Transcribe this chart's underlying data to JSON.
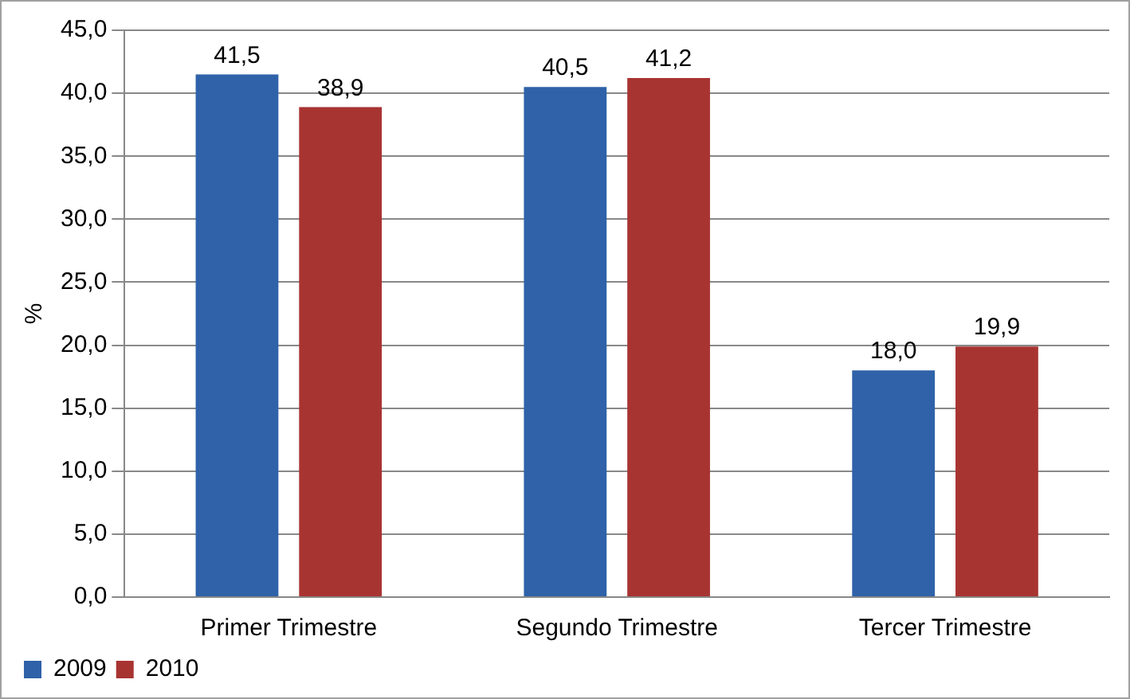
{
  "chart_data": {
    "type": "bar",
    "ylabel": "%",
    "categories": [
      "Primer Trimestre",
      "Segundo Trimestre",
      "Tercer Trimestre"
    ],
    "series": [
      {
        "name": "2009",
        "color": "#2f62a8",
        "values": [
          41.5,
          40.5,
          18.0
        ],
        "value_labels": [
          "41,5",
          "40,5",
          "18,0"
        ]
      },
      {
        "name": "2010",
        "color": "#a83432",
        "values": [
          38.9,
          41.2,
          19.9
        ],
        "value_labels": [
          "38,9",
          "41,2",
          "19,9"
        ]
      }
    ],
    "ylim": [
      0,
      45
    ],
    "yticks": [
      {
        "value": 0,
        "label": "0,0"
      },
      {
        "value": 5,
        "label": "5,0"
      },
      {
        "value": 10,
        "label": "10,0"
      },
      {
        "value": 15,
        "label": "15,0"
      },
      {
        "value": 20,
        "label": "20,0"
      },
      {
        "value": 25,
        "label": "25,0"
      },
      {
        "value": 30,
        "label": "30,0"
      },
      {
        "value": 35,
        "label": "35,0"
      },
      {
        "value": 40,
        "label": "40,0"
      },
      {
        "value": 45,
        "label": "45,0"
      }
    ],
    "grid": "y",
    "legend": "bottom left"
  }
}
